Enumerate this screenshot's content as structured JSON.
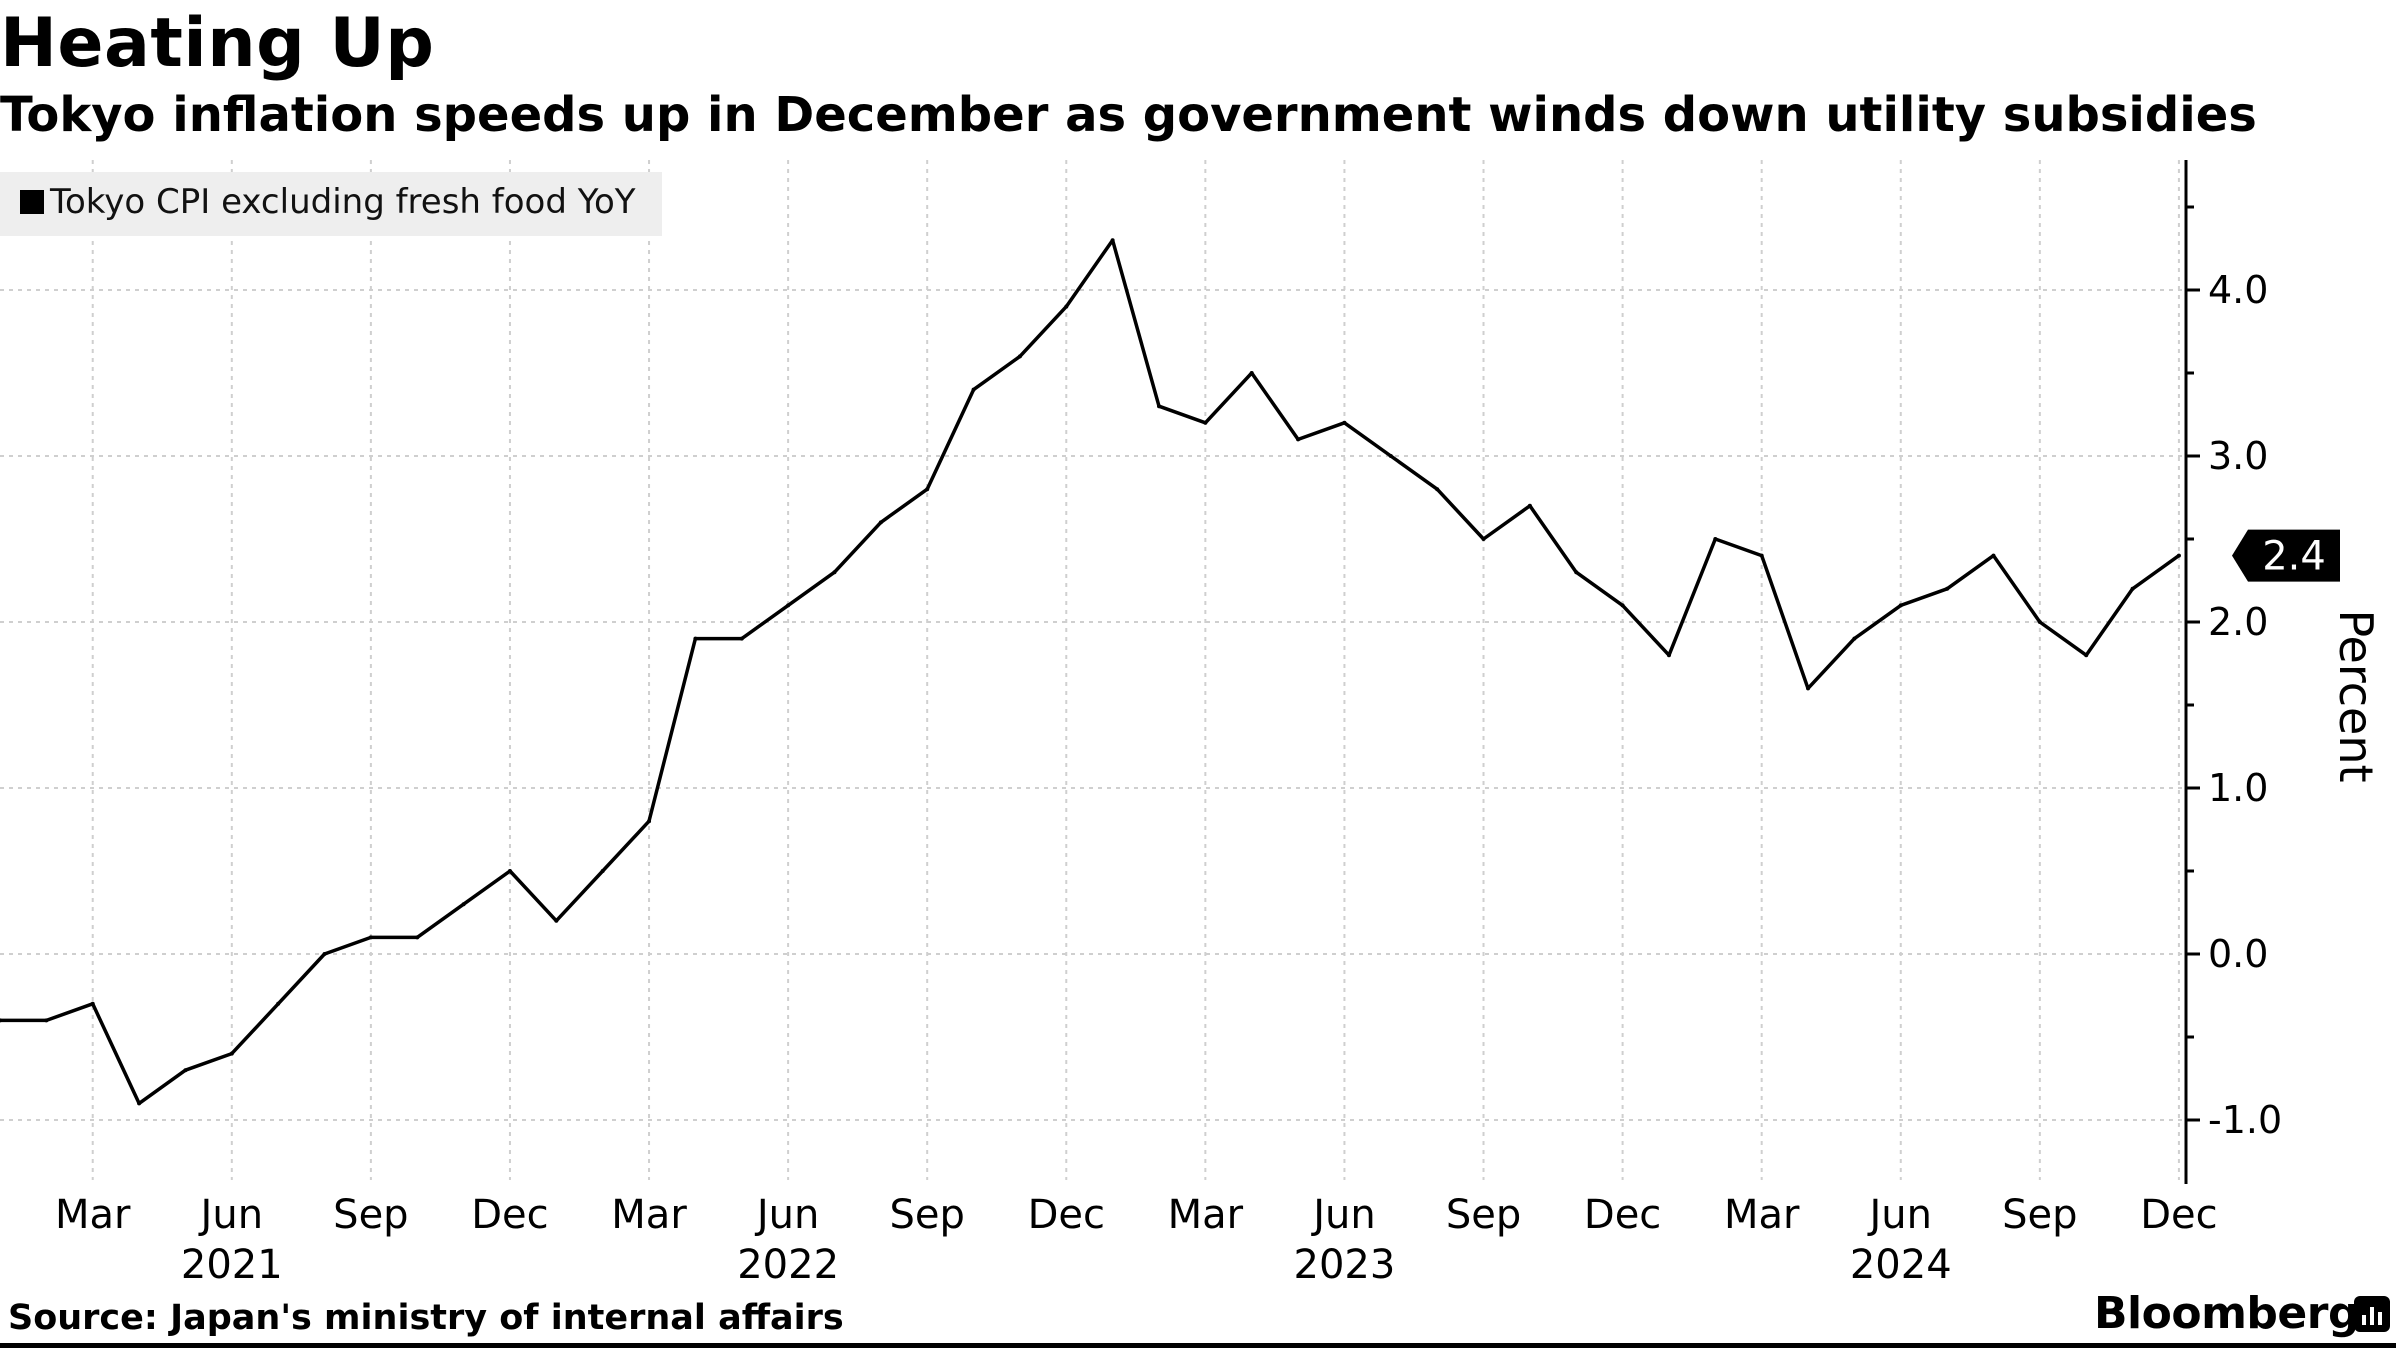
{
  "title": "Heating Up",
  "subtitle": "Tokyo inflation speeds up in December as government winds down utility subsidies",
  "source": "Source: Japan's ministry of internal affairs",
  "brand": "Bloomberg",
  "brand_icon": "bloomberg-terminal-icon",
  "chart_data": {
    "type": "line",
    "ylabel": "Percent",
    "ylim": [
      -1.4,
      4.7
    ],
    "yticks": [
      -1.0,
      0.0,
      1.0,
      2.0,
      3.0,
      4.0
    ],
    "ytick_labels": [
      "-1.0",
      "0.0",
      "1.0",
      "2.0",
      "3.0",
      "4.0"
    ],
    "grid": true,
    "legend_position": "top-left",
    "x_months": [
      "Jan 2021",
      "Feb 2021",
      "Mar 2021",
      "Apr 2021",
      "May 2021",
      "Jun 2021",
      "Jul 2021",
      "Aug 2021",
      "Sep 2021",
      "Oct 2021",
      "Nov 2021",
      "Dec 2021",
      "Jan 2022",
      "Feb 2022",
      "Mar 2022",
      "Apr 2022",
      "May 2022",
      "Jun 2022",
      "Jul 2022",
      "Aug 2022",
      "Sep 2022",
      "Oct 2022",
      "Nov 2022",
      "Dec 2022",
      "Jan 2023",
      "Feb 2023",
      "Mar 2023",
      "Apr 2023",
      "May 2023",
      "Jun 2023",
      "Jul 2023",
      "Aug 2023",
      "Sep 2023",
      "Oct 2023",
      "Nov 2023",
      "Dec 2023",
      "Jan 2024",
      "Feb 2024",
      "Mar 2024",
      "Apr 2024",
      "May 2024",
      "Jun 2024",
      "Jul 2024",
      "Aug 2024",
      "Sep 2024",
      "Oct 2024",
      "Nov 2024",
      "Dec 2024"
    ],
    "xtick_labels": [
      {
        "month": "Mar 2021",
        "label": "Mar"
      },
      {
        "month": "Jun 2021",
        "label": "Jun"
      },
      {
        "month": "Sep 2021",
        "label": "Sep"
      },
      {
        "month": "Dec 2021",
        "label": "Dec"
      },
      {
        "month": "Mar 2022",
        "label": "Mar"
      },
      {
        "month": "Jun 2022",
        "label": "Jun"
      },
      {
        "month": "Sep 2022",
        "label": "Sep"
      },
      {
        "month": "Dec 2022",
        "label": "Dec"
      },
      {
        "month": "Mar 2023",
        "label": "Mar"
      },
      {
        "month": "Jun 2023",
        "label": "Jun"
      },
      {
        "month": "Sep 2023",
        "label": "Sep"
      },
      {
        "month": "Dec 2023",
        "label": "Dec"
      },
      {
        "month": "Mar 2024",
        "label": "Mar"
      },
      {
        "month": "Jun 2024",
        "label": "Jun"
      },
      {
        "month": "Sep 2024",
        "label": "Sep"
      },
      {
        "month": "Dec 2024",
        "label": "Dec"
      }
    ],
    "year_labels": [
      {
        "month": "Jun 2021",
        "label": "2021"
      },
      {
        "month": "Jun 2022",
        "label": "2022"
      },
      {
        "month": "Jun 2023",
        "label": "2023"
      },
      {
        "month": "Jun 2024",
        "label": "2024"
      }
    ],
    "series": [
      {
        "name": "Tokyo CPI excluding fresh food YoY",
        "color": "#000000",
        "values": [
          -0.4,
          -0.4,
          -0.3,
          -0.9,
          -0.7,
          -0.6,
          -0.3,
          0.0,
          0.1,
          0.1,
          0.3,
          0.5,
          0.2,
          0.5,
          0.8,
          1.9,
          1.9,
          2.1,
          2.3,
          2.6,
          2.8,
          3.4,
          3.6,
          3.9,
          4.3,
          3.3,
          3.2,
          3.5,
          3.1,
          3.2,
          3.0,
          2.8,
          2.5,
          2.7,
          2.3,
          2.1,
          1.8,
          2.5,
          2.4,
          1.6,
          1.9,
          2.1,
          2.2,
          2.4,
          2.0,
          1.8,
          2.2,
          2.4
        ]
      }
    ],
    "last_value_label": "2.4"
  }
}
